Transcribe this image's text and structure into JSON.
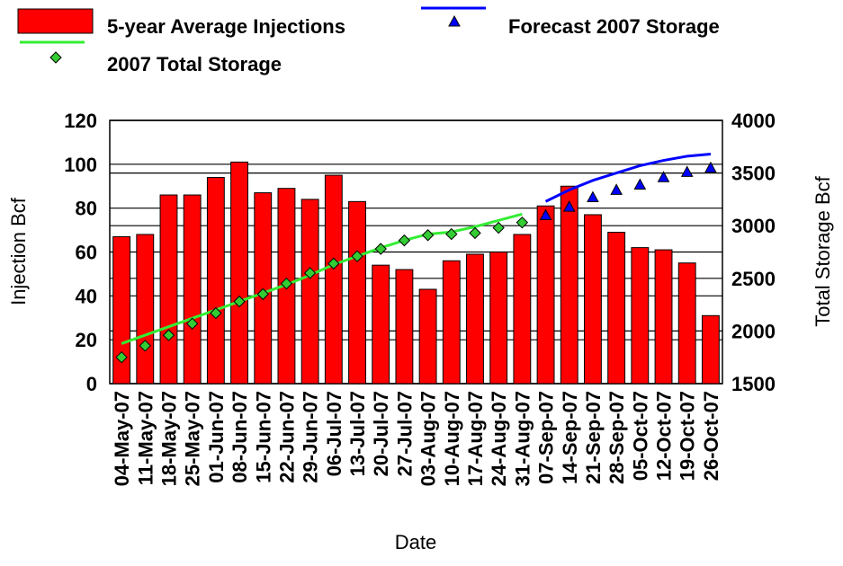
{
  "chart_data": {
    "type": "bar_line",
    "categories": [
      "04-May-07",
      "11-May-07",
      "18-May-07",
      "25-May-07",
      "01-Jun-07",
      "08-Jun-07",
      "15-Jun-07",
      "22-Jun-07",
      "29-Jun-07",
      "06-Jul-07",
      "13-Jul-07",
      "20-Jul-07",
      "27-Jul-07",
      "03-Aug-07",
      "10-Aug-07",
      "17-Aug-07",
      "24-Aug-07",
      "31-Aug-07",
      "07-Sep-07",
      "14-Sep-07",
      "21-Sep-07",
      "28-Sep-07",
      "05-Oct-07",
      "12-Oct-07",
      "19-Oct-07",
      "26-Oct-07"
    ],
    "series": [
      {
        "name": "5-year Average Injections",
        "kind": "bar",
        "color": "#ff0000",
        "values": [
          67,
          68,
          86,
          86,
          94,
          101,
          87,
          89,
          84,
          95,
          83,
          54,
          52,
          43,
          56,
          59,
          60,
          68,
          81,
          90,
          77,
          69,
          62,
          61,
          55,
          31
        ]
      },
      {
        "kind": "line",
        "axis": "y2",
        "color": "#0000ff",
        "values": [
          null,
          null,
          null,
          null,
          null,
          null,
          null,
          null,
          null,
          null,
          null,
          null,
          null,
          null,
          null,
          null,
          null,
          null,
          3230,
          3340,
          3430,
          3500,
          3570,
          3620,
          3660,
          3680
        ]
      },
      {
        "name": "Forecast 2007 Storage",
        "kind": "triangle",
        "axis": "y2",
        "color": "#0000ff",
        "values": [
          null,
          null,
          null,
          null,
          null,
          null,
          null,
          null,
          null,
          null,
          null,
          null,
          null,
          null,
          null,
          null,
          null,
          null,
          3100,
          3180,
          3270,
          3340,
          3390,
          3460,
          3510,
          3550
        ]
      },
      {
        "kind": "line",
        "axis": "y2",
        "color": "#33ee33",
        "values": [
          1880,
          1960,
          2040,
          2120,
          2200,
          2280,
          2360,
          2440,
          2530,
          2630,
          2710,
          2790,
          2860,
          2920,
          2940,
          2990,
          3050,
          3110,
          null,
          null,
          null,
          null,
          null,
          null,
          null,
          null
        ]
      },
      {
        "name": "2007 Total Storage",
        "kind": "diamond",
        "axis": "y2",
        "color": "#33cc33",
        "values": [
          1750,
          1860,
          1960,
          2070,
          2170,
          2280,
          2350,
          2450,
          2550,
          2640,
          2710,
          2780,
          2860,
          2910,
          2920,
          2930,
          2980,
          3030,
          null,
          null,
          null,
          null,
          null,
          null,
          null,
          null
        ]
      }
    ],
    "ylabel": "Injection Bcf",
    "y2label": "Total Storage Bcf",
    "xlabel": "Date",
    "ylim": [
      0,
      120
    ],
    "yticks": [
      0,
      20,
      40,
      60,
      80,
      100,
      120
    ],
    "y2lim": [
      1500,
      4000
    ],
    "y2ticks": [
      1500,
      2000,
      2500,
      3000,
      3500,
      4000
    ],
    "grid": true
  }
}
